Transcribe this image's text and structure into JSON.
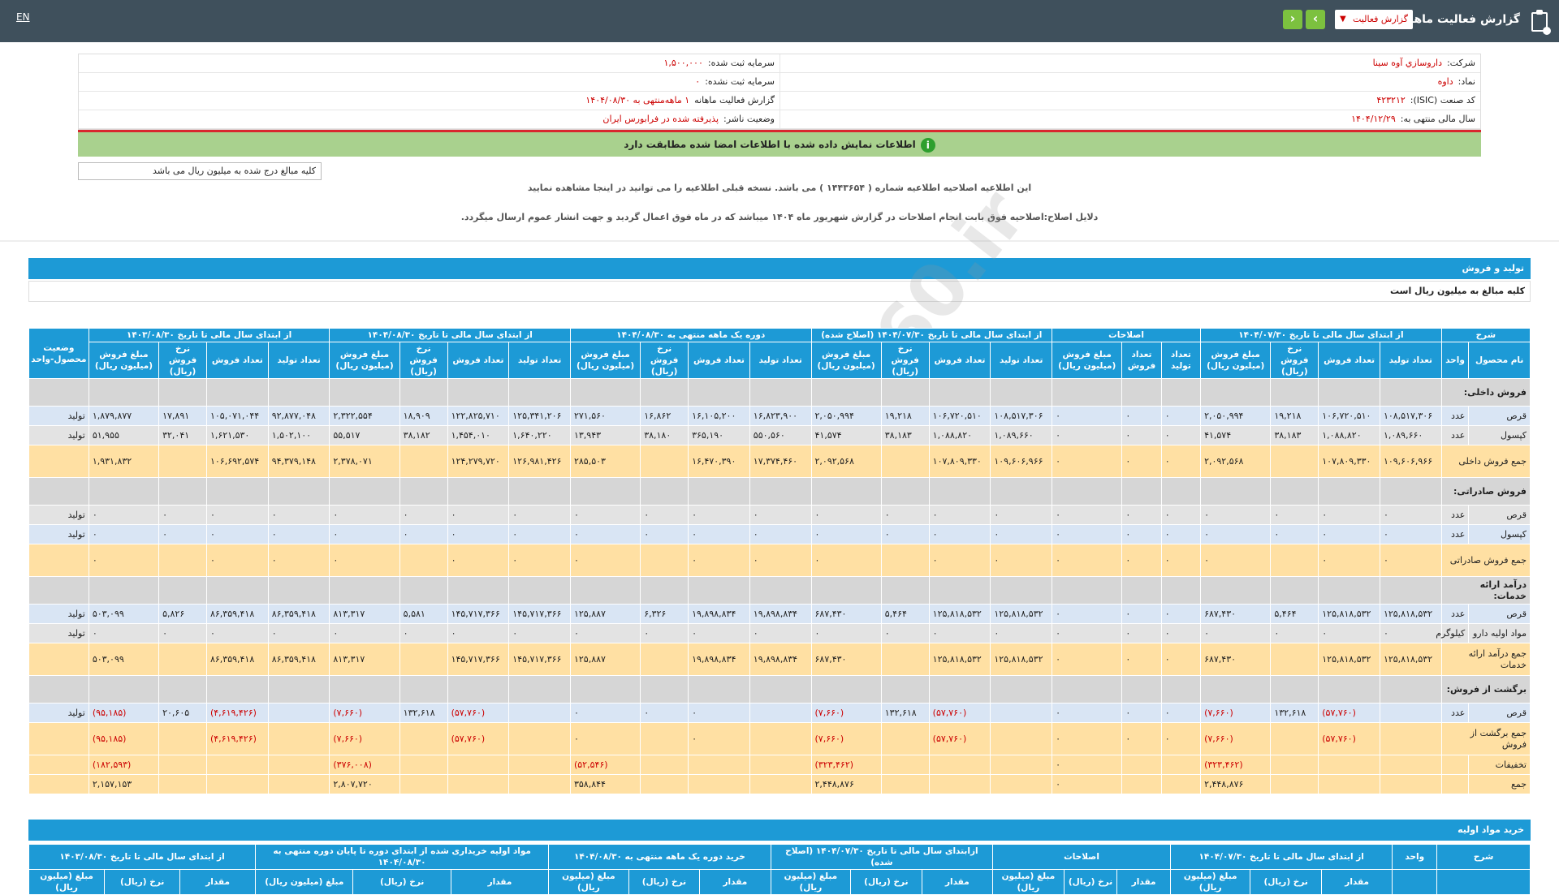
{
  "topbar": {
    "title": "گزارش فعالیت ماهانه",
    "select_value": "گزارش فعالیت",
    "lang": "EN",
    "prev": "‹",
    "next": "›"
  },
  "info": {
    "rows": [
      {
        "l1": "شرکت:",
        "v1": "داروسازي آوه سينا",
        "l2": "سرمایه ثبت شده:",
        "v2": "۱,۵۰۰,۰۰۰"
      },
      {
        "l1": "نماد:",
        "v1": "داوه",
        "l2": "سرمایه ثبت نشده:",
        "v2": "۰"
      },
      {
        "l1": "کد صنعت (ISIC):",
        "v1": "۴۲۳۲۱۲",
        "l2": "گزارش فعالیت ماهانه",
        "v2": "۱ ماهه‌منتهی به ۱۴۰۴/۰۸/۳۰"
      },
      {
        "l1": "سال مالی منتهی به:",
        "v1": "۱۴۰۴/۱۲/۲۹",
        "l2": "وضعیت ناشر:",
        "v2": "پذیرفته شده در فرابورس ایران"
      }
    ]
  },
  "green_msg": "اطلاعات نمایش داده شده با اطلاعات امضا شده مطابقت دارد",
  "note": "کلیه مبالغ درج شده به میلیون ریال می باشد",
  "correction1": "این اطلاعیه اصلاحیه اطلاعیه شماره ( ۱۴۴۳۶۵۴ ) می باشد. نسخه قبلی اطلاعیه را می توانید در اینجا مشاهده نمایید",
  "correction2": "دلایل اصلاح:اصلاحیه فوق بابت انجام اصلاحات در گزارش شهریور ماه ۱۴۰۴ میباشد که در ماه فوق اعمال گردید و جهت انشار عموم ارسال میگردد.",
  "section1": {
    "title": "تولید و فروش",
    "subtitle": "کلیه مبالغ به میلیون ریال است"
  },
  "section2": {
    "title": "خرید مواد اولیه"
  },
  "watermark": "@Codal360.ir",
  "table1": {
    "groups": [
      "شرح",
      "از ابتدای سال مالی تا تاریخ ۱۴۰۴/۰۷/۳۰",
      "اصلاحات",
      "از ابتدای سال مالی تا تاریخ ۱۴۰۴/۰۷/۳۰ (اصلاح شده)",
      "دوره یک ماهه منتهی به ۱۴۰۴/۰۸/۳۰",
      "از ابتدای سال مالی تا تاریخ ۱۴۰۴/۰۸/۳۰",
      "از ابتدای سال مالی تا تاریخ ۱۴۰۳/۰۸/۳۰",
      "وضعیت محصول-واحد"
    ],
    "sub": [
      "نام محصول",
      "واحد",
      "تعداد تولید",
      "تعداد فروش",
      "نرخ فروش (ریال)",
      "مبلغ فروش (میلیون ریال)",
      "تعداد تولید",
      "تعداد فروش",
      "مبلغ فروش (میلیون ریال)",
      "تعداد تولید",
      "تعداد فروش",
      "نرخ فروش (ریال)",
      "مبلغ فروش (میلیون ریال)",
      "تعداد تولید",
      "تعداد فروش",
      "نرخ فروش (ریال)",
      "مبلغ فروش (میلیون ریال)",
      "تعداد تولید",
      "تعداد فروش",
      "نرخ فروش (ریال)",
      "مبلغ فروش (میلیون ریال)",
      "تعداد تولید",
      "تعداد فروش",
      "نرخ فروش (ریال)",
      "مبلغ فروش (میلیون ریال)"
    ],
    "rows": [
      {
        "type": "cat",
        "name": "فروش داخلی:"
      },
      {
        "type": "blue",
        "name": "قرص",
        "unit": "عدد",
        "cells": [
          "۱۰۸,۵۱۷,۳۰۶",
          "۱۰۶,۷۲۰,۵۱۰",
          "۱۹,۲۱۸",
          "۲,۰۵۰,۹۹۴",
          "۰",
          "۰",
          "۰",
          "۱۰۸,۵۱۷,۳۰۶",
          "۱۰۶,۷۲۰,۵۱۰",
          "۱۹,۲۱۸",
          "۲,۰۵۰,۹۹۴",
          "۱۶,۸۲۳,۹۰۰",
          "۱۶,۱۰۵,۲۰۰",
          "۱۶,۸۶۲",
          "۲۷۱,۵۶۰",
          "۱۲۵,۳۴۱,۲۰۶",
          "۱۲۲,۸۲۵,۷۱۰",
          "۱۸,۹۰۹",
          "۲,۳۲۲,۵۵۴",
          "۹۲,۸۷۷,۰۴۸",
          "۱۰۵,۰۷۱,۰۴۴",
          "۱۷,۸۹۱",
          "۱,۸۷۹,۸۷۷"
        ],
        "status": "تولید"
      },
      {
        "type": "grey",
        "name": "کپسول",
        "unit": "عدد",
        "cells": [
          "۱,۰۸۹,۶۶۰",
          "۱,۰۸۸,۸۲۰",
          "۳۸,۱۸۳",
          "۴۱,۵۷۴",
          "۰",
          "۰",
          "۰",
          "۱,۰۸۹,۶۶۰",
          "۱,۰۸۸,۸۲۰",
          "۳۸,۱۸۳",
          "۴۱,۵۷۴",
          "۵۵۰,۵۶۰",
          "۳۶۵,۱۹۰",
          "۳۸,۱۸۰",
          "۱۳,۹۴۳",
          "۱,۶۴۰,۲۲۰",
          "۱,۴۵۴,۰۱۰",
          "۳۸,۱۸۲",
          "۵۵,۵۱۷",
          "۱,۵۰۲,۱۰۰",
          "۱,۶۲۱,۵۳۰",
          "۳۲,۰۴۱",
          "۵۱,۹۵۵"
        ],
        "status": "تولید"
      },
      {
        "type": "yel",
        "name": "جمع فروش داخلی",
        "unit": "",
        "cells": [
          "۱۰۹,۶۰۶,۹۶۶",
          "۱۰۷,۸۰۹,۳۳۰",
          "",
          "۲,۰۹۲,۵۶۸",
          "۰",
          "۰",
          "۰",
          "۱۰۹,۶۰۶,۹۶۶",
          "۱۰۷,۸۰۹,۳۳۰",
          "",
          "۲,۰۹۲,۵۶۸",
          "۱۷,۳۷۴,۴۶۰",
          "۱۶,۴۷۰,۳۹۰",
          "",
          "۲۸۵,۵۰۳",
          "۱۲۶,۹۸۱,۴۲۶",
          "۱۲۴,۲۷۹,۷۲۰",
          "",
          "۲,۳۷۸,۰۷۱",
          "۹۴,۳۷۹,۱۴۸",
          "۱۰۶,۶۹۲,۵۷۴",
          "",
          "۱,۹۳۱,۸۳۲"
        ],
        "status": ""
      },
      {
        "type": "cat",
        "name": "فروش صادراتی:"
      },
      {
        "type": "grey",
        "name": "قرص",
        "unit": "عدد",
        "cells": [
          "۰",
          "۰",
          "۰",
          "۰",
          "۰",
          "۰",
          "۰",
          "۰",
          "۰",
          "۰",
          "۰",
          "۰",
          "۰",
          "۰",
          "۰",
          "۰",
          "۰",
          "۰",
          "۰",
          "۰",
          "۰",
          "۰",
          "۰"
        ],
        "status": "تولید"
      },
      {
        "type": "blue",
        "name": "کپسول",
        "unit": "عدد",
        "cells": [
          "۰",
          "۰",
          "۰",
          "۰",
          "۰",
          "۰",
          "۰",
          "۰",
          "۰",
          "۰",
          "۰",
          "۰",
          "۰",
          "۰",
          "۰",
          "۰",
          "۰",
          "۰",
          "۰",
          "۰",
          "۰",
          "۰",
          "۰"
        ],
        "status": "تولید"
      },
      {
        "type": "yel",
        "name": "جمع فروش صادراتی",
        "unit": "",
        "cells": [
          "۰",
          "۰",
          "",
          "۰",
          "۰",
          "۰",
          "۰",
          "۰",
          "۰",
          "",
          "۰",
          "۰",
          "۰",
          "",
          "۰",
          "۰",
          "۰",
          "",
          "۰",
          "۰",
          "۰",
          "",
          "۰"
        ],
        "status": ""
      },
      {
        "type": "cat",
        "name": "درآمد ارائه خدمات:"
      },
      {
        "type": "blue",
        "name": "قرص",
        "unit": "عدد",
        "cells": [
          "۱۲۵,۸۱۸,۵۳۲",
          "۱۲۵,۸۱۸,۵۳۲",
          "۵,۴۶۴",
          "۶۸۷,۴۳۰",
          "۰",
          "۰",
          "۰",
          "۱۲۵,۸۱۸,۵۳۲",
          "۱۲۵,۸۱۸,۵۳۲",
          "۵,۴۶۴",
          "۶۸۷,۴۳۰",
          "۱۹,۸۹۸,۸۳۴",
          "۱۹,۸۹۸,۸۳۴",
          "۶,۳۲۶",
          "۱۲۵,۸۸۷",
          "۱۴۵,۷۱۷,۳۶۶",
          "۱۴۵,۷۱۷,۳۶۶",
          "۵,۵۸۱",
          "۸۱۳,۳۱۷",
          "۸۶,۳۵۹,۴۱۸",
          "۸۶,۳۵۹,۴۱۸",
          "۵,۸۲۶",
          "۵۰۳,۰۹۹"
        ],
        "status": "تولید"
      },
      {
        "type": "grey",
        "name": "مواد اولیه دارو",
        "unit": "کیلوگرم",
        "cells": [
          "۰",
          "۰",
          "۰",
          "۰",
          "۰",
          "۰",
          "۰",
          "۰",
          "۰",
          "۰",
          "۰",
          "۰",
          "۰",
          "۰",
          "۰",
          "۰",
          "۰",
          "۰",
          "۰",
          "۰",
          "۰",
          "۰",
          "۰"
        ],
        "status": "تولید"
      },
      {
        "type": "yel",
        "name": "جمع درآمد ارائه خدمات",
        "unit": "",
        "cells": [
          "۱۲۵,۸۱۸,۵۳۲",
          "۱۲۵,۸۱۸,۵۳۲",
          "",
          "۶۸۷,۴۳۰",
          "۰",
          "۰",
          "۰",
          "۱۲۵,۸۱۸,۵۳۲",
          "۱۲۵,۸۱۸,۵۳۲",
          "",
          "۶۸۷,۴۳۰",
          "۱۹,۸۹۸,۸۳۴",
          "۱۹,۸۹۸,۸۳۴",
          "",
          "۱۲۵,۸۸۷",
          "۱۴۵,۷۱۷,۳۶۶",
          "۱۴۵,۷۱۷,۳۶۶",
          "",
          "۸۱۳,۳۱۷",
          "۸۶,۳۵۹,۴۱۸",
          "۸۶,۳۵۹,۴۱۸",
          "",
          "۵۰۳,۰۹۹"
        ],
        "status": ""
      },
      {
        "type": "cat",
        "name": "برگشت از فروش:"
      },
      {
        "type": "blue",
        "name": "قرص",
        "unit": "عدد",
        "cells": [
          "",
          "(۵۷,۷۶۰)",
          "۱۳۲,۶۱۸",
          "(۷,۶۶۰)",
          "۰",
          "۰",
          "۰",
          "",
          "(۵۷,۷۶۰)",
          "۱۳۲,۶۱۸",
          "(۷,۶۶۰)",
          "",
          "۰",
          "۰",
          "۰",
          "",
          "(۵۷,۷۶۰)",
          "۱۳۲,۶۱۸",
          "(۷,۶۶۰)",
          "",
          "(۴,۶۱۹,۴۲۶)",
          "۲۰,۶۰۵",
          "(۹۵,۱۸۵)"
        ],
        "status": "تولید"
      },
      {
        "type": "yel",
        "name": "جمع برگشت از فروش",
        "unit": "",
        "cells": [
          "",
          "(۵۷,۷۶۰)",
          "",
          "(۷,۶۶۰)",
          "۰",
          "۰",
          "۰",
          "",
          "(۵۷,۷۶۰)",
          "",
          "(۷,۶۶۰)",
          "",
          "۰",
          "",
          "۰",
          "",
          "(۵۷,۷۶۰)",
          "",
          "(۷,۶۶۰)",
          "",
          "(۴,۶۱۹,۴۲۶)",
          "",
          "(۹۵,۱۸۵)"
        ],
        "status": ""
      },
      {
        "type": "yel2",
        "name": "تخفیفات",
        "unit": "",
        "cells": [
          "",
          "",
          "",
          "(۳۲۳,۴۶۲)",
          "",
          "",
          "۰",
          "",
          "",
          "",
          "(۳۲۳,۴۶۲)",
          "",
          "",
          "",
          "(۵۲,۵۴۶)",
          "",
          "",
          "",
          "(۳۷۶,۰۰۸)",
          "",
          "",
          "",
          "(۱۸۲,۵۹۳)"
        ],
        "status": ""
      },
      {
        "type": "yel2",
        "name": "جمع",
        "unit": "",
        "cells": [
          "",
          "",
          "",
          "۲,۴۴۸,۸۷۶",
          "",
          "",
          "۰",
          "",
          "",
          "",
          "۲,۴۴۸,۸۷۶",
          "",
          "",
          "",
          "۳۵۸,۸۴۴",
          "",
          "",
          "",
          "۲,۸۰۷,۷۲۰",
          "",
          "",
          "",
          "۲,۱۵۷,۱۵۳"
        ],
        "status": ""
      }
    ]
  },
  "table2": {
    "groups": [
      "شرح",
      "واحد",
      "از ابتدای سال مالی تا تاریخ ۱۴۰۴/۰۷/۳۰",
      "اصلاحات",
      "ازابتدای سال مالی تا تاریخ ۱۴۰۴/۰۷/۳۰ (اصلاح شده)",
      "خرید دوره یک ماهه منتهی به ۱۴۰۴/۰۸/۳۰",
      "مواد اولیه خریداری شده از ابتدای دوره تا پایان دوره منتهی به ۱۴۰۴/۰۸/۳۰",
      "از ابتدای سال مالی تا تاریخ ۱۴۰۳/۰۸/۳۰"
    ],
    "sub": [
      "مقدار",
      "نرخ (ریال)",
      "مبلغ (میلیون ریال)"
    ]
  }
}
